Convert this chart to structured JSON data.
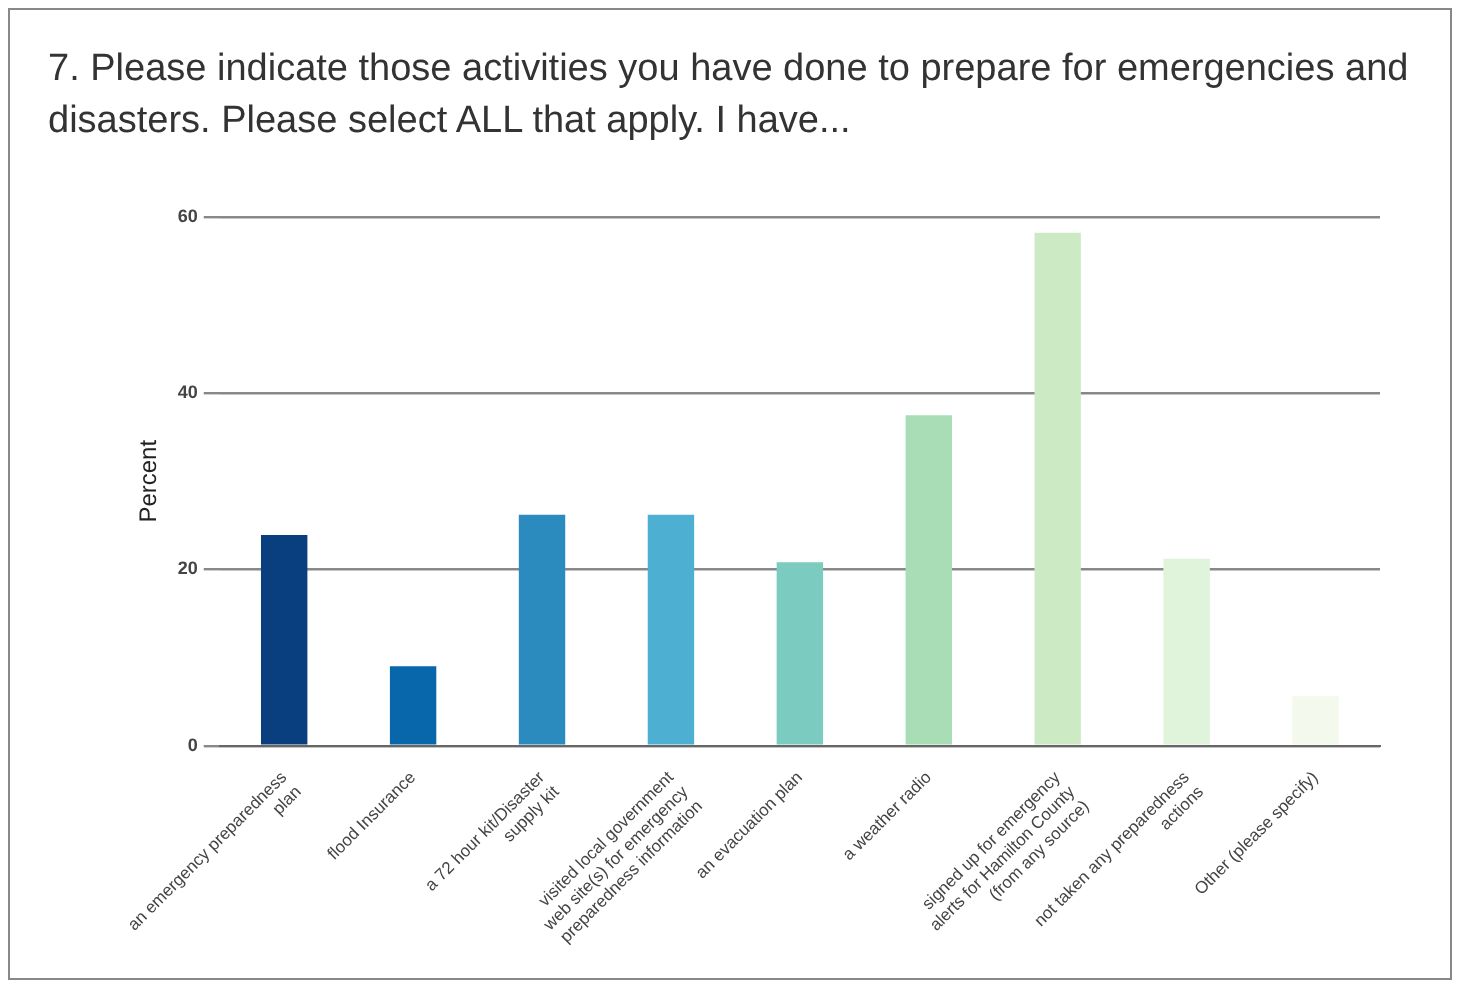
{
  "chart_data": {
    "type": "bar",
    "title": "7. Please indicate those activities you have done to prepare for emergencies and disasters. Please select ALL that apply. I have...",
    "ylabel": "Percent",
    "categories": [
      "an emergency preparedness plan",
      "flood Insurance",
      "a 72 hour kit/Disaster supply kit",
      "visited local government web site(s) for emergency preparedness information",
      "an evacuation plan",
      "a weather radio",
      "signed up for emergency alerts for Hamilton County (from any source)",
      "not taken any preparedness actions",
      "Other (please specify)"
    ],
    "values": [
      23.9,
      9.0,
      26.2,
      26.2,
      20.8,
      37.5,
      58.2,
      21.2,
      5.6
    ],
    "colors": [
      "#0a3f7f",
      "#0866aa",
      "#2b8bbe",
      "#4db0d3",
      "#7bcbc1",
      "#a8ddb5",
      "#ccebc5",
      "#e0f3db",
      "#f3f9ec"
    ],
    "ylim": [
      0,
      60
    ],
    "yticks": [
      0,
      20,
      40,
      60
    ],
    "grid": "y",
    "legend": false
  }
}
